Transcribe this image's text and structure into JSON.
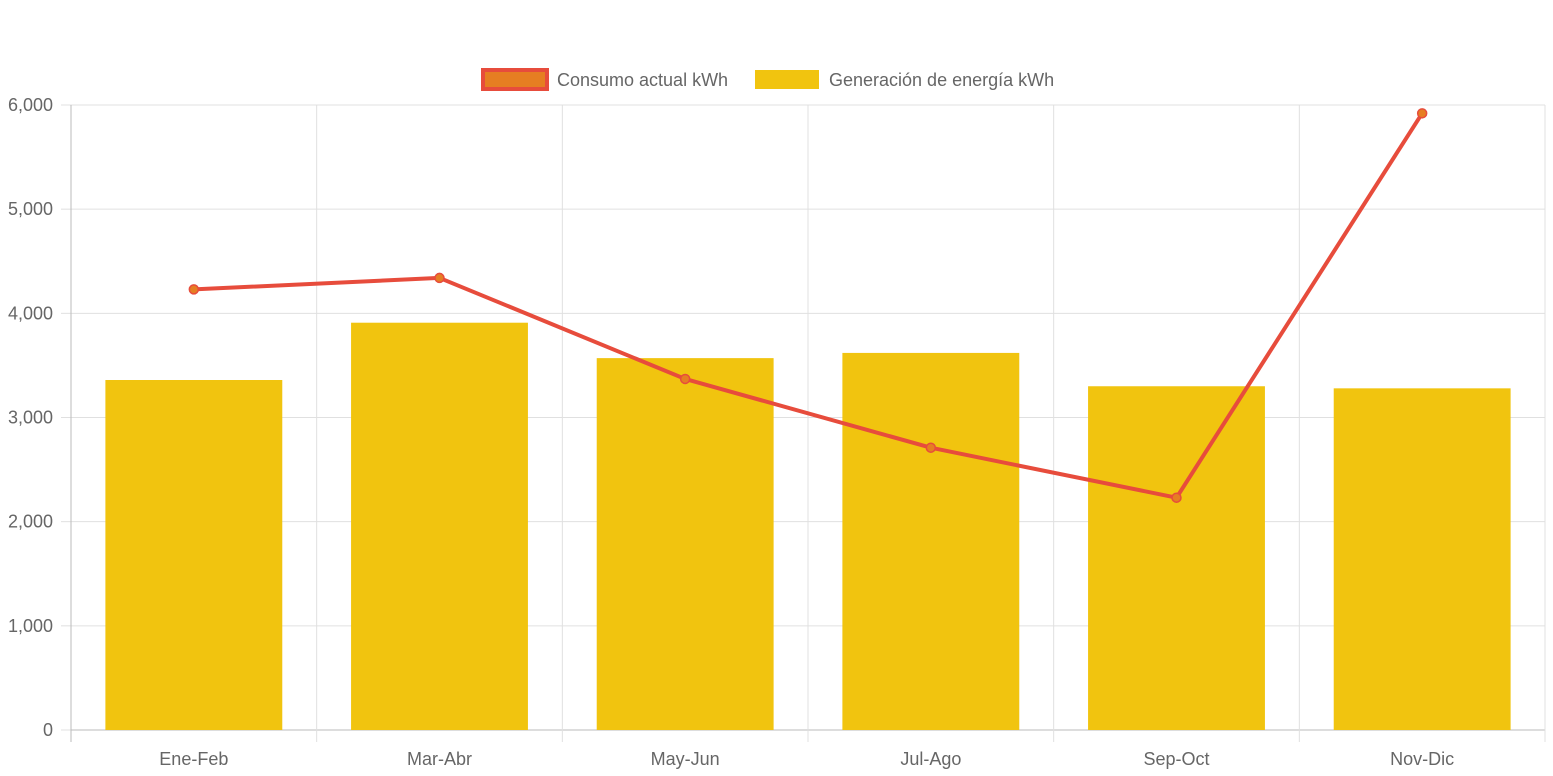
{
  "chart_data": {
    "type": "bar",
    "categories": [
      "Ene-Feb",
      "Mar-Abr",
      "May-Jun",
      "Jul-Ago",
      "Sep-Oct",
      "Nov-Dic"
    ],
    "series": [
      {
        "name": "Consumo actual kWh",
        "type": "line",
        "values": [
          4230,
          4340,
          3370,
          2710,
          2230,
          5920
        ],
        "color": "#e74c3c",
        "point_color": "#e67e22"
      },
      {
        "name": "Generación de energía kWh",
        "type": "bar",
        "values": [
          3360,
          3910,
          3570,
          3620,
          3300,
          3280
        ],
        "color": "#f1c40f"
      }
    ],
    "ylim": [
      0,
      6000
    ],
    "yticks": [
      0,
      1000,
      2000,
      3000,
      4000,
      5000,
      6000
    ],
    "ytick_labels": [
      "0",
      "1,000",
      "2,000",
      "3,000",
      "4,000",
      "5,000",
      "6,000"
    ],
    "grid": true,
    "legend_position": "top-center",
    "title": "",
    "xlabel": "",
    "ylabel": ""
  }
}
